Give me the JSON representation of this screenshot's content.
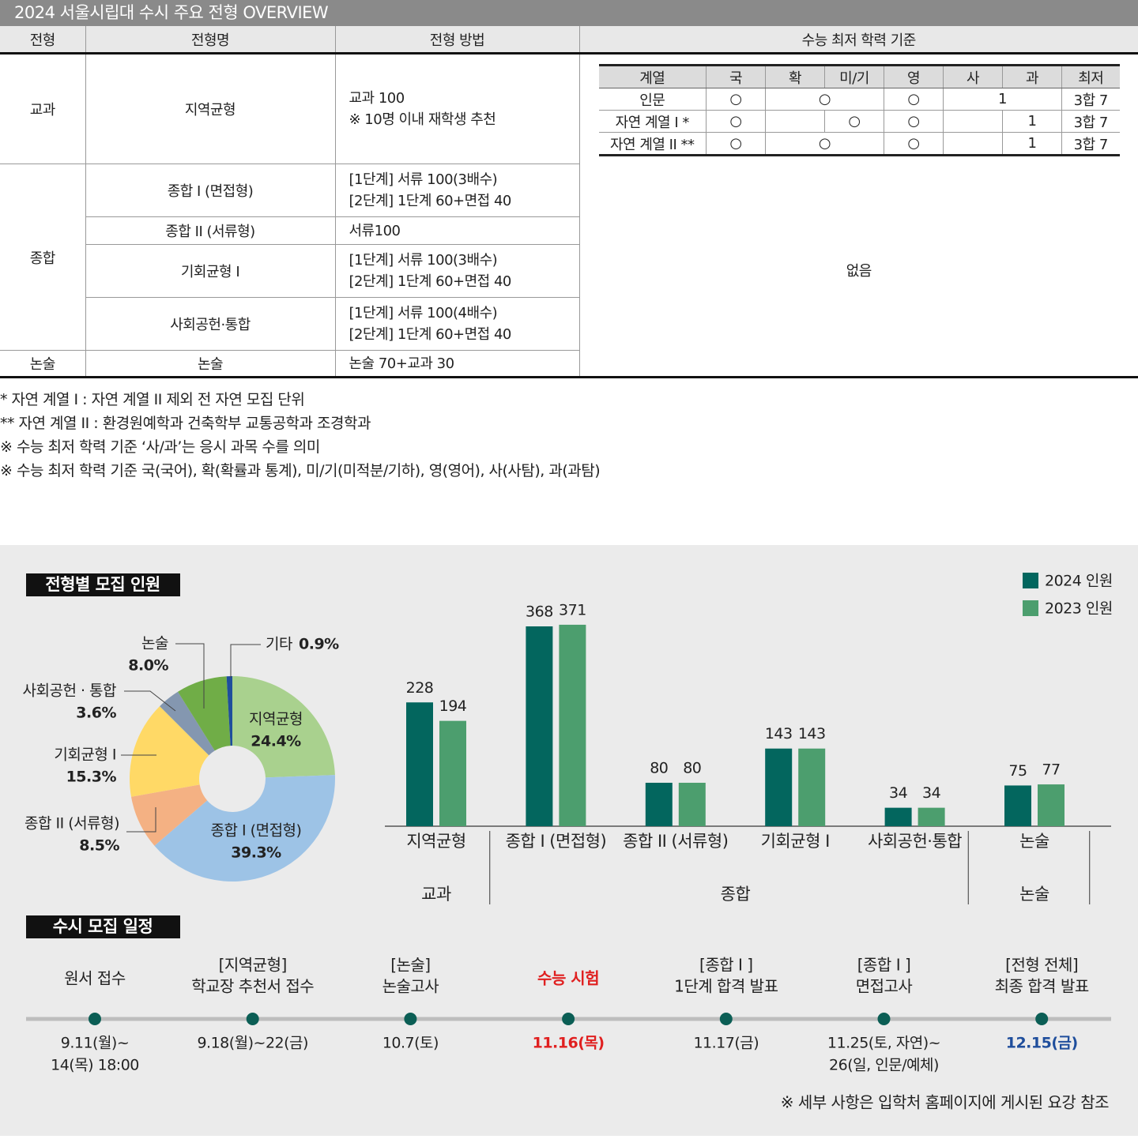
{
  "title": "2024 서울시립대 수시 주요 전형 OVERVIEW",
  "table": {
    "headers": [
      "전형",
      "전형명",
      "전형 방법",
      "수능 최저 학력 기준"
    ],
    "groups": [
      {
        "name": "교과",
        "items": [
          {
            "name": "지역균형",
            "method": [
              "교과 100",
              "※ 10명 이내 재학생 추천"
            ]
          }
        ]
      },
      {
        "name": "종합",
        "items": [
          {
            "name": "종합 I (면접형)",
            "method": [
              "[1단계] 서류 100(3배수)",
              "[2단계] 1단계 60+면접 40"
            ]
          },
          {
            "name": "종합 II (서류형)",
            "method": [
              "서류100"
            ]
          },
          {
            "name": "기회균형 I",
            "method": [
              "[1단계] 서류 100(3배수)",
              "[2단계] 1단계 60+면접 40"
            ]
          },
          {
            "name": "사회공헌·통합",
            "method": [
              "[1단계] 서류 100(4배수)",
              "[2단계] 1단계 60+면접 40"
            ]
          }
        ]
      },
      {
        "name": "논술",
        "items": [
          {
            "name": "논술",
            "method": [
              "논술 70+교과 30"
            ]
          }
        ]
      }
    ],
    "criteria": {
      "headers": [
        "계열",
        "국",
        "확",
        "미/기",
        "영",
        "사",
        "과",
        "최저"
      ],
      "rows": [
        [
          "인문",
          "○",
          "○",
          "○",
          1,
          "3합 7"
        ],
        [
          "자연 계열 I *",
          "○",
          "○",
          "○",
          1,
          "3합 7"
        ],
        [
          "자연 계열 II **",
          "○",
          "○",
          "○",
          1,
          "3합 7"
        ]
      ]
    },
    "none": "없음"
  },
  "notes": [
    "* 자연 계열 I : 자연 계열 II  제외 전 자연 모집 단위",
    "** 자연 계열 II : 환경원예학과 건축학부 교통공학과 조경학과",
    "※ 수능 최저 학력 기준 ‘사/과’는 응시 과목 수를 의미",
    "※ 수능 최저 학력 기준 국(국어), 확(확률과 통계), 미/기(미적분/기하), 영(영어), 사(사탐), 과(과탐)"
  ],
  "chart_data": [
    {
      "type": "pie",
      "title": "전형별 모집 인원",
      "categories": [
        "지역균형",
        "종합 I (면접형)",
        "종합 II (서류형)",
        "기회균형 I",
        "사회공헌 · 통합",
        "논술",
        "기타"
      ],
      "values": [
        24.4,
        39.3,
        8.5,
        15.3,
        3.6,
        8.0,
        0.9
      ],
      "value_labels": [
        "24.4%",
        "39.3%",
        "8.5%",
        "15.3%",
        "3.6%",
        "8.0%",
        "0.9%"
      ],
      "colors": [
        "#a9d18e",
        "#9dc3e6",
        "#f4b183",
        "#ffd966",
        "#8497b0",
        "#70ad47",
        "#1f4e9c"
      ]
    },
    {
      "type": "bar",
      "groups": [
        {
          "name": "교과",
          "categories": [
            "지역균형"
          ]
        },
        {
          "name": "종합",
          "categories": [
            "종합 I (면접형)",
            "종합 II (서류형)",
            "기회균형 I",
            "사회공헌·통합"
          ]
        },
        {
          "name": "논술",
          "categories": [
            "논술"
          ]
        }
      ],
      "series": [
        {
          "name": "2024 인원",
          "color": "#03665e",
          "values": [
            228,
            368,
            80,
            143,
            34,
            75
          ]
        },
        {
          "name": "2023 인원",
          "color": "#4c9e6e",
          "values": [
            194,
            371,
            80,
            143,
            34,
            77
          ]
        }
      ],
      "ylim": [
        0,
        400
      ],
      "legend": "top-right"
    }
  ],
  "schedule": {
    "title": "수시 모집 일정",
    "events": [
      {
        "label": [
          "원서 접수"
        ],
        "date": [
          "9.11(월)~",
          "14(목) 18:00"
        ]
      },
      {
        "label": [
          "[지역균형]",
          "학교장 추천서 접수"
        ],
        "date": [
          "9.18(월)~22(금)"
        ]
      },
      {
        "label": [
          "[논술]",
          "논술고사"
        ],
        "date": [
          "10.7(토)"
        ]
      },
      {
        "label": [
          "수능 시험"
        ],
        "date": [
          "11.16(목)"
        ],
        "color": "#e02020"
      },
      {
        "label": [
          "[종합 I ]",
          "1단계 합격 발표"
        ],
        "date": [
          "11.17(금)"
        ]
      },
      {
        "label": [
          "[종합 I ]",
          "면접고사"
        ],
        "date": [
          "11.25(토, 자연)~",
          "26(일, 인문/예체)"
        ]
      },
      {
        "label": [
          "[전형 전체]",
          "최종 합격 발표"
        ],
        "date": [
          "12.15(금)"
        ],
        "date_color": "#1f4e9c"
      }
    ]
  },
  "footnote": "※ 세부 사항은 입학처 홈페이지에 게시된 요강 참조"
}
